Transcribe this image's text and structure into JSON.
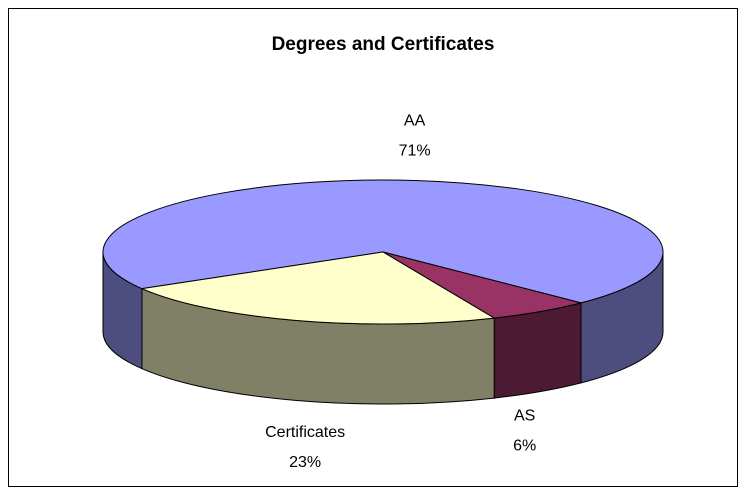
{
  "chart_data": {
    "type": "pie3d",
    "title": "Degrees and Certificates",
    "categories": [
      "AA",
      "AS",
      "Certificates"
    ],
    "values": [
      71,
      6,
      23
    ],
    "value_labels": [
      "71%",
      "6%",
      "23%"
    ],
    "colors": [
      "#9999FF",
      "#993366",
      "#FFFFCC"
    ]
  }
}
